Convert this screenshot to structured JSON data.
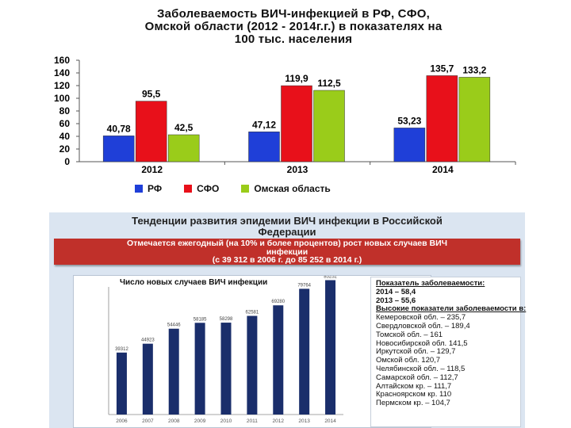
{
  "chart1": {
    "title_lines": [
      "Заболеваемость ВИЧ-инфекцией в РФ, СФО,",
      "Омской области (2012 - 2014г.г.) в показателях на",
      "100 тыс. населения"
    ],
    "colors": {
      "rf": "#1f3fd8",
      "sfo": "#e8101a",
      "omsk": "#9acc1a"
    }
  },
  "chart_data": [
    {
      "type": "bar",
      "title": "Заболеваемость ВИЧ-инфекцией в РФ, СФО, Омской области (2012 - 2014г.г.) в показателях на 100 тыс. населения",
      "categories": [
        "2012",
        "2013",
        "2014"
      ],
      "series": [
        {
          "name": "РФ",
          "values": [
            40.78,
            47.12,
            53.23
          ],
          "labels": [
            "40,78",
            "47,12",
            "53,23"
          ]
        },
        {
          "name": "СФО",
          "values": [
            95.5,
            119.9,
            135.7
          ],
          "labels": [
            "95,5",
            "119,9",
            "135,7"
          ]
        },
        {
          "name": "Омская область",
          "values": [
            42.5,
            112.5,
            133.2
          ],
          "labels": [
            "42,5",
            "112,5",
            "133,2"
          ]
        }
      ],
      "yticks": [
        0,
        20,
        40,
        60,
        80,
        100,
        120,
        140,
        160
      ],
      "ylim": [
        0,
        160
      ],
      "legend": "bottom",
      "grid": false
    },
    {
      "type": "bar",
      "title": "Число новых случаев ВИЧ инфекции",
      "categories": [
        "2006",
        "2007",
        "2008",
        "2009",
        "2010",
        "2011",
        "2012",
        "2013",
        "2014"
      ],
      "values": [
        39312,
        44923,
        54446,
        58185,
        58298,
        62581,
        69280,
        79764,
        85252
      ],
      "labels": [
        "39312",
        "44923",
        "54446",
        "58185",
        "58298",
        "62581",
        "69280",
        "79764",
        "85252"
      ],
      "ylim": [
        0,
        88000
      ],
      "grid": false
    }
  ],
  "panel": {
    "title_lines": [
      "Тенденции развития эпидемии ВИЧ инфекции в Российской",
      "Федерации"
    ],
    "banner_lines": [
      "Отмечается ежегодный (на 10% и более процентов) рост новых случаев ВИЧ",
      "инфекции",
      "(с 39 312 в 2006 г. до 85 252 в 2014 г.)"
    ],
    "stats": {
      "heading": "Показатель заболеваемости:",
      "lines": [
        "2014 – 58,4",
        "2013 – 55,6"
      ],
      "high_heading": "Высокие показатели заболеваемости в:",
      "regions": [
        "Кемеровской обл. – 235,7",
        "Свердловской обл. – 189,4",
        "Томской обл. – 161",
        "Новосибирской обл. 141,5",
        "Иркутской обл. – 129,7",
        "Омской обл. 120,7",
        "Челябинской обл. – 118,5",
        "Самарской обл. – 112,7",
        "Алтайском кр. – 111,7",
        "Красноярском кр. 110",
        "Пермском кр. – 104,7"
      ]
    }
  }
}
